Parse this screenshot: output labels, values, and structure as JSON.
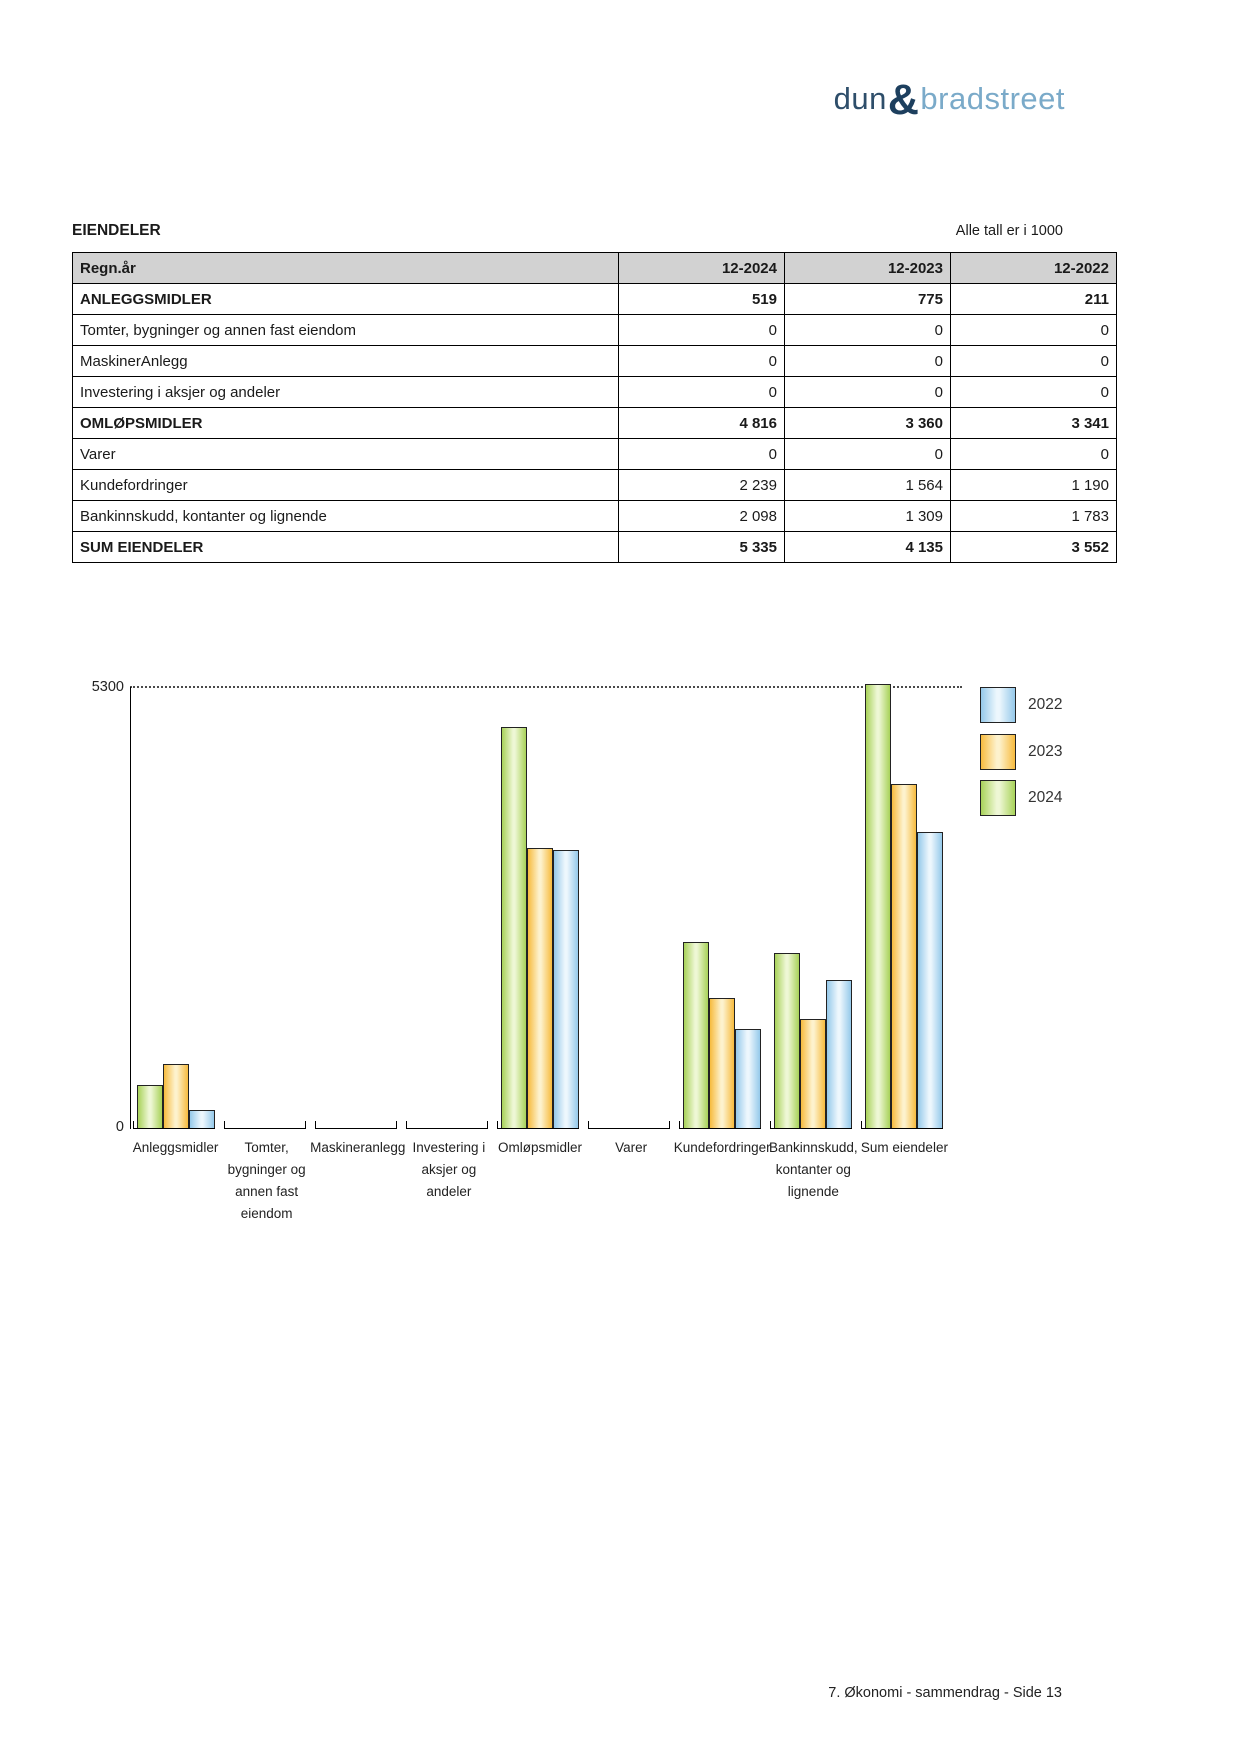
{
  "logo": {
    "dun": "dun",
    "amp": "&",
    "bradstreet": "bradstreet",
    "color_dark": "#2e4e6a",
    "color_light": "#7aaac9"
  },
  "header": {
    "title": "EIENDELER",
    "note": "Alle tall er i 1000"
  },
  "table": {
    "columns": [
      "Regn.år",
      "12-2024",
      "12-2023",
      "12-2022"
    ],
    "rows": [
      {
        "label": "ANLEGGSMIDLER",
        "values": [
          "519",
          "775",
          "211"
        ],
        "bold": true
      },
      {
        "label": "Tomter, bygninger og annen fast eiendom",
        "values": [
          "0",
          "0",
          "0"
        ],
        "bold": false
      },
      {
        "label": "MaskinerAnlegg",
        "values": [
          "0",
          "0",
          "0"
        ],
        "bold": false
      },
      {
        "label": "Investering i aksjer og andeler",
        "values": [
          "0",
          "0",
          "0"
        ],
        "bold": false
      },
      {
        "label": "OMLØPSMIDLER",
        "values": [
          "4 816",
          "3 360",
          "3 341"
        ],
        "bold": true
      },
      {
        "label": "Varer",
        "values": [
          "0",
          "0",
          "0"
        ],
        "bold": false
      },
      {
        "label": "Kundefordringer",
        "values": [
          "2 239",
          "1 564",
          "1 190"
        ],
        "bold": false
      },
      {
        "label": "Bankinnskudd, kontanter og lignende",
        "values": [
          "2 098",
          "1 309",
          "1 783"
        ],
        "bold": false
      },
      {
        "label": "SUM EIENDELER",
        "values": [
          "5 335",
          "4 135",
          "3 552"
        ],
        "bold": true
      }
    ]
  },
  "chart_data": {
    "type": "bar",
    "title": "",
    "xlabel": "",
    "ylabel": "",
    "ylim": [
      0,
      5300
    ],
    "ytick_labels": {
      "max": "5300",
      "min": "0"
    },
    "grid": "single dotted horizontal line at y=5300",
    "legend_position": "right-top, vertical",
    "categories": [
      "Anleggsmidler",
      "Tomter, bygninger og annen fast eiendom",
      "Maskineranlegg",
      "Investering i aksjer og andeler",
      "Omløpsmidler",
      "Varer",
      "Kundefordringer",
      "Bankinnskudd, kontanter og lignende",
      "Sum eiendeler"
    ],
    "category_label_lines": [
      [
        "Anleggsmidler"
      ],
      [
        "Tomter,",
        "bygninger og",
        "annen fast",
        "eiendom"
      ],
      [
        "Maskineranlegg"
      ],
      [
        "Investering i",
        "aksjer og",
        "andeler"
      ],
      [
        "Omløpsmidler"
      ],
      [
        "Varer"
      ],
      [
        "Kundefordringer"
      ],
      [
        "Bankinnskudd,",
        "kontanter og",
        "lignende"
      ],
      [
        "Sum eiendeler"
      ]
    ],
    "series": [
      {
        "name": "2024",
        "values": [
          519,
          0,
          0,
          0,
          4816,
          0,
          2239,
          2098,
          5335
        ]
      },
      {
        "name": "2023",
        "values": [
          775,
          0,
          0,
          0,
          3360,
          0,
          1564,
          1309,
          4135
        ]
      },
      {
        "name": "2022",
        "values": [
          211,
          0,
          0,
          0,
          3341,
          0,
          1190,
          1783,
          3552
        ]
      }
    ],
    "legend": [
      "2022",
      "2023",
      "2024"
    ],
    "colors": {
      "2024": {
        "edge": "#a8d259",
        "center": "#eef7d5"
      },
      "2023": {
        "edge": "#f7bb3e",
        "center": "#fdf2cd"
      },
      "2022": {
        "edge": "#95c9ea",
        "center": "#edf7fd"
      }
    }
  },
  "page": {
    "footer": "7. Økonomi - sammendrag - Side 13"
  }
}
